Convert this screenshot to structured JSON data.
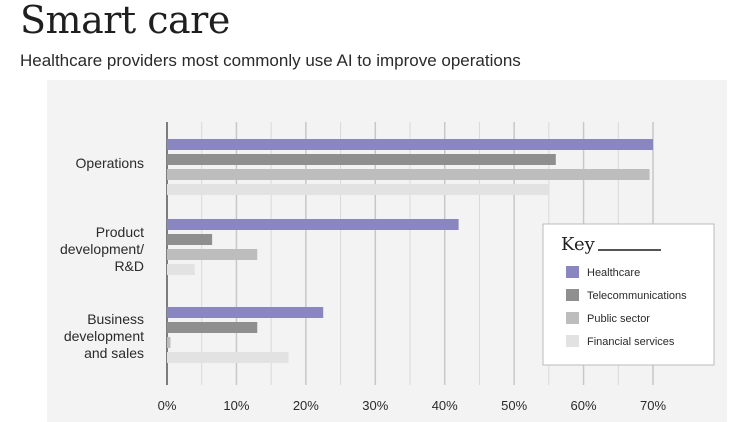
{
  "title": "Smart care",
  "subtitle": "Healthcare providers most commonly use AI to improve operations",
  "colors": {
    "panel_background": "#f3f3f3",
    "gridline": "#c8c8c8",
    "axis": "#555555",
    "healthcare": "#8a87c0",
    "telecommunications": "#8f8f8f",
    "public_sector": "#bdbdbd",
    "financial_services": "#e2e2e2"
  },
  "chart_data": {
    "type": "bar",
    "orientation": "horizontal",
    "title": "Smart care",
    "subtitle": "Healthcare providers most commonly use AI to improve operations",
    "categories": [
      [
        "Operations"
      ],
      [
        "Product",
        "development/",
        "R&D"
      ],
      [
        "Business",
        "development",
        "and sales"
      ]
    ],
    "series": [
      {
        "name": "Healthcare",
        "values": [
          70,
          42,
          22.5
        ]
      },
      {
        "name": "Telecommunications",
        "values": [
          56,
          6.5,
          13
        ]
      },
      {
        "name": "Public sector",
        "values": [
          69.5,
          13,
          0.5
        ]
      },
      {
        "name": "Financial services",
        "values": [
          55,
          4,
          17.5
        ]
      }
    ],
    "xlim": [
      0,
      70
    ],
    "xticks": [
      "0%",
      "10%",
      "20%",
      "30%",
      "40%",
      "50%",
      "60%",
      "70%"
    ],
    "xtick_values": [
      0,
      10,
      20,
      30,
      40,
      50,
      60,
      70
    ],
    "grid": true,
    "legend": {
      "title": "Key",
      "placement": "right"
    }
  }
}
